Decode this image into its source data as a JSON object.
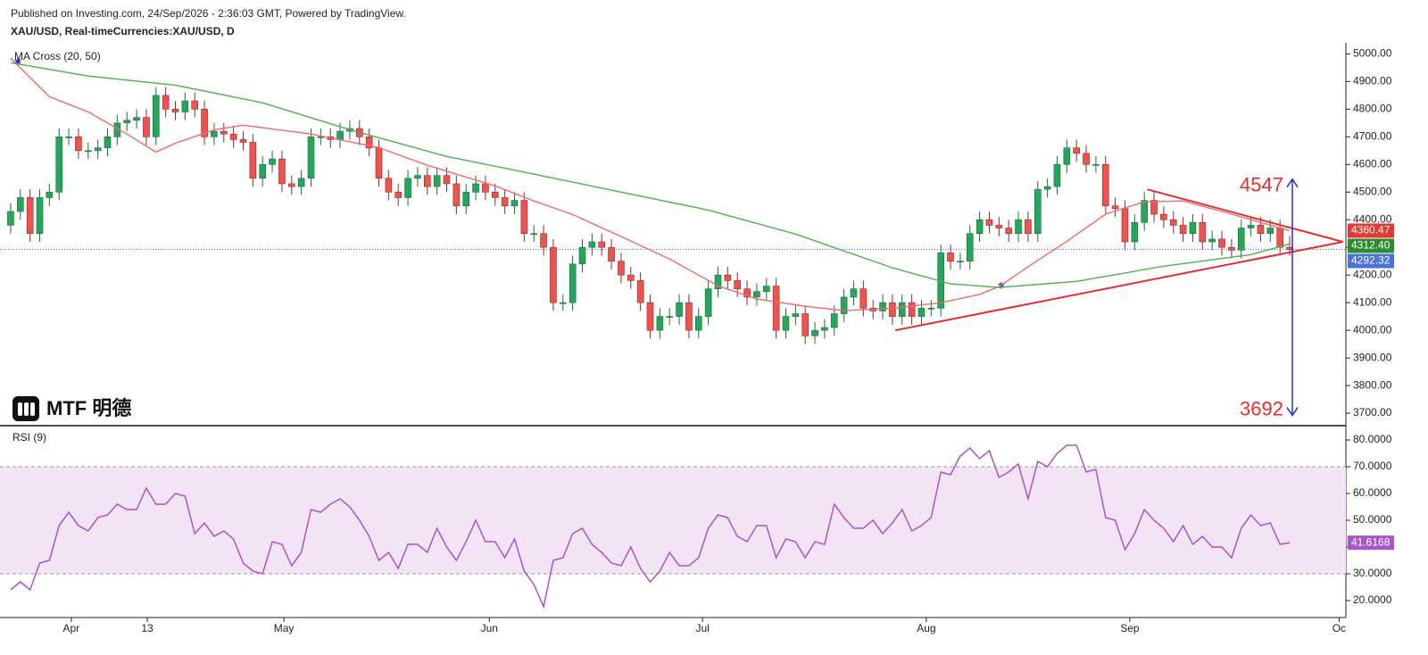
{
  "header": {
    "published": "Published on Investing.com, 24/Sep/2026 - 2:36:03 GMT, Powered by TradingView.",
    "symbol": "XAU/USD, Real-timeCurrencies:XAU/USD, D"
  },
  "logo": "MTF 明德",
  "chart_data": [
    {
      "type": "candlestick",
      "indicator": "MA Cross (20, 50)",
      "up_color": "#26a65b",
      "down_color": "#ef5350",
      "xlim": [
        -1.1,
        137.8
      ],
      "ylim": [
        3655,
        5040
      ],
      "xticks": [
        {
          "value": 6.26,
          "label": "Apr"
        },
        {
          "value": 14.1,
          "label": "13"
        },
        {
          "value": 28.2,
          "label": "May"
        },
        {
          "value": 49.4,
          "label": "Jun"
        },
        {
          "value": 71.4,
          "label": "Jul"
        },
        {
          "value": 94.5,
          "label": "Aug"
        },
        {
          "value": 115.5,
          "label": "Sep"
        },
        {
          "value": 137.1,
          "label": "Oc"
        }
      ],
      "yticks": [
        {
          "value": 3700,
          "label": "3700.00"
        },
        {
          "value": 3800,
          "label": "3800.00"
        },
        {
          "value": 3900,
          "label": "3900.00"
        },
        {
          "value": 4000,
          "label": "4000.00"
        },
        {
          "value": 4100,
          "label": "4100.00"
        },
        {
          "value": 4200,
          "label": "4200.00"
        },
        {
          "value": 4300,
          "label": "4300.00"
        },
        {
          "value": 4400,
          "label": "4400.00"
        },
        {
          "value": 4500,
          "label": "4500.00"
        },
        {
          "value": 4600,
          "label": "4600.00"
        },
        {
          "value": 4700,
          "label": "4700.00"
        },
        {
          "value": 4800,
          "label": "4800.00"
        },
        {
          "value": 4900,
          "label": "4900.00"
        },
        {
          "value": 5000,
          "label": "5000.00"
        }
      ],
      "open": [
        4380,
        4430,
        4480,
        4350,
        4480,
        4500,
        4700,
        4700,
        4650,
        4650,
        4660,
        4700,
        4750,
        4760,
        4770,
        4700,
        4850,
        4800,
        4790,
        4830,
        4800,
        4700,
        4720,
        4710,
        4690,
        4680,
        4550,
        4600,
        4620,
        4530,
        4520,
        4550,
        4700,
        4700,
        4690,
        4720,
        4730,
        4700,
        4660,
        4550,
        4500,
        4480,
        4550,
        4560,
        4520,
        4560,
        4530,
        4450,
        4500,
        4530,
        4500,
        4480,
        4450,
        4470,
        4350,
        4350,
        4300,
        4100,
        4100,
        4240,
        4300,
        4320,
        4300,
        4250,
        4200,
        4180,
        4100,
        4000,
        4050,
        4050,
        4100,
        4000,
        4050,
        4150,
        4200,
        4180,
        4150,
        4120,
        4140,
        4160,
        4000,
        4050,
        4060,
        3980,
        4000,
        4010,
        4060,
        4120,
        4150,
        4080,
        4070,
        4100,
        4050,
        4100,
        4050,
        4080,
        4080,
        4280,
        4250,
        4250,
        4350,
        4400,
        4380,
        4370,
        4350,
        4400,
        4350,
        4510,
        4520,
        4600,
        4660,
        4640,
        4600,
        4600,
        4450,
        4440,
        4320,
        4390,
        4470,
        4420,
        4400,
        4380,
        4350,
        4390,
        4320,
        4330,
        4300,
        4290,
        4370,
        4380,
        4350,
        4370,
        4300
      ],
      "high": [
        4460,
        4510,
        4510,
        4510,
        4530,
        4730,
        4730,
        4730,
        4680,
        4690,
        4730,
        4780,
        4790,
        4800,
        4800,
        4880,
        4880,
        4830,
        4860,
        4860,
        4830,
        4750,
        4750,
        4740,
        4720,
        4710,
        4630,
        4650,
        4650,
        4560,
        4580,
        4730,
        4730,
        4730,
        4750,
        4760,
        4760,
        4730,
        4690,
        4580,
        4530,
        4580,
        4590,
        4590,
        4590,
        4590,
        4560,
        4530,
        4560,
        4560,
        4530,
        4510,
        4500,
        4500,
        4380,
        4380,
        4330,
        4130,
        4270,
        4330,
        4350,
        4350,
        4330,
        4280,
        4230,
        4210,
        4130,
        4080,
        4080,
        4130,
        4130,
        4080,
        4180,
        4230,
        4230,
        4210,
        4180,
        4170,
        4190,
        4190,
        4080,
        4090,
        4090,
        4030,
        4040,
        4090,
        4150,
        4180,
        4180,
        4110,
        4130,
        4130,
        4130,
        4130,
        4110,
        4110,
        4310,
        4310,
        4280,
        4380,
        4430,
        4430,
        4410,
        4400,
        4430,
        4430,
        4540,
        4550,
        4630,
        4690,
        4690,
        4670,
        4630,
        4630,
        4480,
        4470,
        4420,
        4500,
        4500,
        4450,
        4430,
        4410,
        4420,
        4420,
        4360,
        4360,
        4330,
        4400,
        4410,
        4410,
        4400,
        4400,
        4340
      ],
      "low": [
        4350,
        4400,
        4320,
        4320,
        4450,
        4470,
        4670,
        4620,
        4620,
        4620,
        4630,
        4670,
        4720,
        4730,
        4670,
        4670,
        4770,
        4760,
        4760,
        4770,
        4670,
        4670,
        4680,
        4660,
        4650,
        4520,
        4520,
        4570,
        4500,
        4490,
        4490,
        4520,
        4670,
        4660,
        4660,
        4690,
        4670,
        4630,
        4520,
        4470,
        4450,
        4450,
        4520,
        4490,
        4490,
        4500,
        4420,
        4420,
        4470,
        4470,
        4450,
        4420,
        4420,
        4320,
        4320,
        4270,
        4070,
        4070,
        4070,
        4210,
        4270,
        4270,
        4220,
        4170,
        4150,
        4070,
        3970,
        3970,
        4020,
        4020,
        3970,
        3970,
        4020,
        4120,
        4150,
        4120,
        4090,
        4090,
        4110,
        3970,
        3970,
        4020,
        3950,
        3950,
        3970,
        3980,
        4030,
        4090,
        4050,
        4040,
        4040,
        4020,
        4020,
        4020,
        4020,
        4050,
        4050,
        4220,
        4220,
        4220,
        4320,
        4350,
        4340,
        4320,
        4320,
        4320,
        4320,
        4480,
        4490,
        4570,
        4610,
        4570,
        4570,
        4420,
        4410,
        4290,
        4290,
        4360,
        4390,
        4370,
        4350,
        4320,
        4320,
        4290,
        4290,
        4270,
        4260,
        4260,
        4340,
        4320,
        4320,
        4270,
        4270
      ],
      "close": [
        4430,
        4480,
        4350,
        4480,
        4500,
        4700,
        4700,
        4650,
        4650,
        4660,
        4700,
        4750,
        4760,
        4770,
        4700,
        4850,
        4800,
        4790,
        4830,
        4800,
        4700,
        4720,
        4710,
        4690,
        4680,
        4550,
        4600,
        4620,
        4530,
        4520,
        4550,
        4700,
        4700,
        4690,
        4720,
        4730,
        4700,
        4660,
        4550,
        4500,
        4480,
        4550,
        4560,
        4520,
        4560,
        4530,
        4450,
        4500,
        4530,
        4500,
        4480,
        4450,
        4470,
        4350,
        4350,
        4300,
        4100,
        4100,
        4240,
        4300,
        4320,
        4300,
        4250,
        4200,
        4180,
        4100,
        4000,
        4050,
        4050,
        4100,
        4000,
        4050,
        4150,
        4200,
        4180,
        4150,
        4120,
        4140,
        4160,
        4000,
        4050,
        4060,
        3980,
        4000,
        4010,
        4060,
        4120,
        4150,
        4080,
        4070,
        4100,
        4050,
        4100,
        4050,
        4080,
        4080,
        4280,
        4250,
        4250,
        4350,
        4400,
        4380,
        4370,
        4350,
        4400,
        4350,
        4510,
        4520,
        4600,
        4660,
        4640,
        4600,
        4600,
        4450,
        4440,
        4320,
        4390,
        4470,
        4420,
        4400,
        4380,
        4350,
        4390,
        4320,
        4330,
        4300,
        4290,
        4370,
        4380,
        4350,
        4370,
        4300,
        4292.32
      ],
      "lines": [
        {
          "color": "#f06a6a",
          "x": [
            0,
            4,
            8,
            12,
            15,
            17,
            21,
            24,
            31,
            38,
            43,
            50,
            54,
            58,
            63,
            68,
            73,
            77,
            82,
            86,
            91,
            96,
            100,
            102,
            105,
            109,
            113,
            117,
            121,
            126,
            132
          ],
          "values": [
            4984,
            4845,
            4790,
            4710,
            4645,
            4677,
            4725,
            4742,
            4710,
            4661,
            4597,
            4522,
            4468,
            4419,
            4339,
            4258,
            4161,
            4113,
            4087,
            4071,
            4080,
            4100,
            4130,
            4158,
            4230,
            4322,
            4420,
            4465,
            4468,
            4420,
            4360.47
          ]
        },
        {
          "color": "#4caf50",
          "x": [
            0,
            8,
            17,
            26,
            35,
            45,
            54,
            63,
            72,
            81,
            91,
            97,
            102,
            110,
            119,
            128,
            132
          ],
          "values": [
            4968,
            4920,
            4887,
            4823,
            4726,
            4629,
            4565,
            4500,
            4435,
            4348,
            4226,
            4168,
            4155,
            4177,
            4232,
            4274,
            4312.4
          ]
        }
      ],
      "trendlines": {
        "color": "#e0302f",
        "lines": [
          {
            "x": [
              117.3,
              137.5
            ],
            "values": [
              4510,
              4320
            ]
          },
          {
            "x": [
              91.3,
              137.5
            ],
            "values": [
              4000,
              4320
            ]
          }
        ]
      },
      "targets": [
        4547,
        3692
      ],
      "target_color": "#e0302f",
      "arrow_color": "#2a2ad8",
      "last_price_color": "#2962ff",
      "badges": [
        {
          "value": 4360.47,
          "color": "#e53935"
        },
        {
          "value": 4312.4,
          "label": "4312.40",
          "color": "#2e8b2e"
        },
        {
          "value": 4292.32,
          "color": "#4a72d8"
        }
      ]
    },
    {
      "type": "line",
      "title": "RSI (9)",
      "color": "#a855c8",
      "band": [
        30,
        70
      ],
      "band_color": "#f3e4f5",
      "ylim": [
        15,
        85
      ],
      "yticks": [
        {
          "value": 20,
          "label": "20.0000"
        },
        {
          "value": 30,
          "label": "30.0000"
        },
        {
          "value": 40,
          "label": "40.0000"
        },
        {
          "value": 50,
          "label": "50.0000"
        },
        {
          "value": 60,
          "label": "60.0000"
        },
        {
          "value": 70,
          "label": "70.0000"
        },
        {
          "value": 80,
          "label": "80.0000"
        }
      ],
      "values": [
        24,
        27,
        24,
        34,
        35,
        48,
        53,
        48,
        46,
        51,
        52,
        56,
        54,
        54,
        62,
        56,
        56,
        60,
        59,
        45,
        49,
        44,
        46,
        43,
        34,
        31,
        30,
        42,
        41,
        33,
        38,
        54,
        53,
        56,
        58,
        55,
        50,
        44,
        35,
        38,
        32,
        41,
        41,
        38,
        47,
        40,
        35,
        42,
        50,
        42,
        42,
        36,
        43,
        31,
        26,
        17.7,
        35,
        36,
        45,
        47,
        41,
        38,
        34,
        33,
        40,
        32,
        27,
        31,
        38,
        33,
        33,
        36,
        47,
        52,
        51,
        44,
        42,
        48,
        48,
        36,
        43,
        42,
        36,
        42,
        41,
        56,
        51,
        47,
        47,
        50,
        45,
        49,
        54,
        46,
        48,
        51,
        68,
        67,
        74,
        77,
        73,
        76,
        66,
        68,
        71,
        58,
        72,
        70,
        75,
        78,
        78,
        68,
        69,
        51,
        50,
        39,
        45,
        54,
        50,
        47,
        42,
        48,
        41,
        44,
        40,
        40,
        36,
        47,
        52,
        48,
        49,
        41,
        41.6168
      ]
    }
  ]
}
